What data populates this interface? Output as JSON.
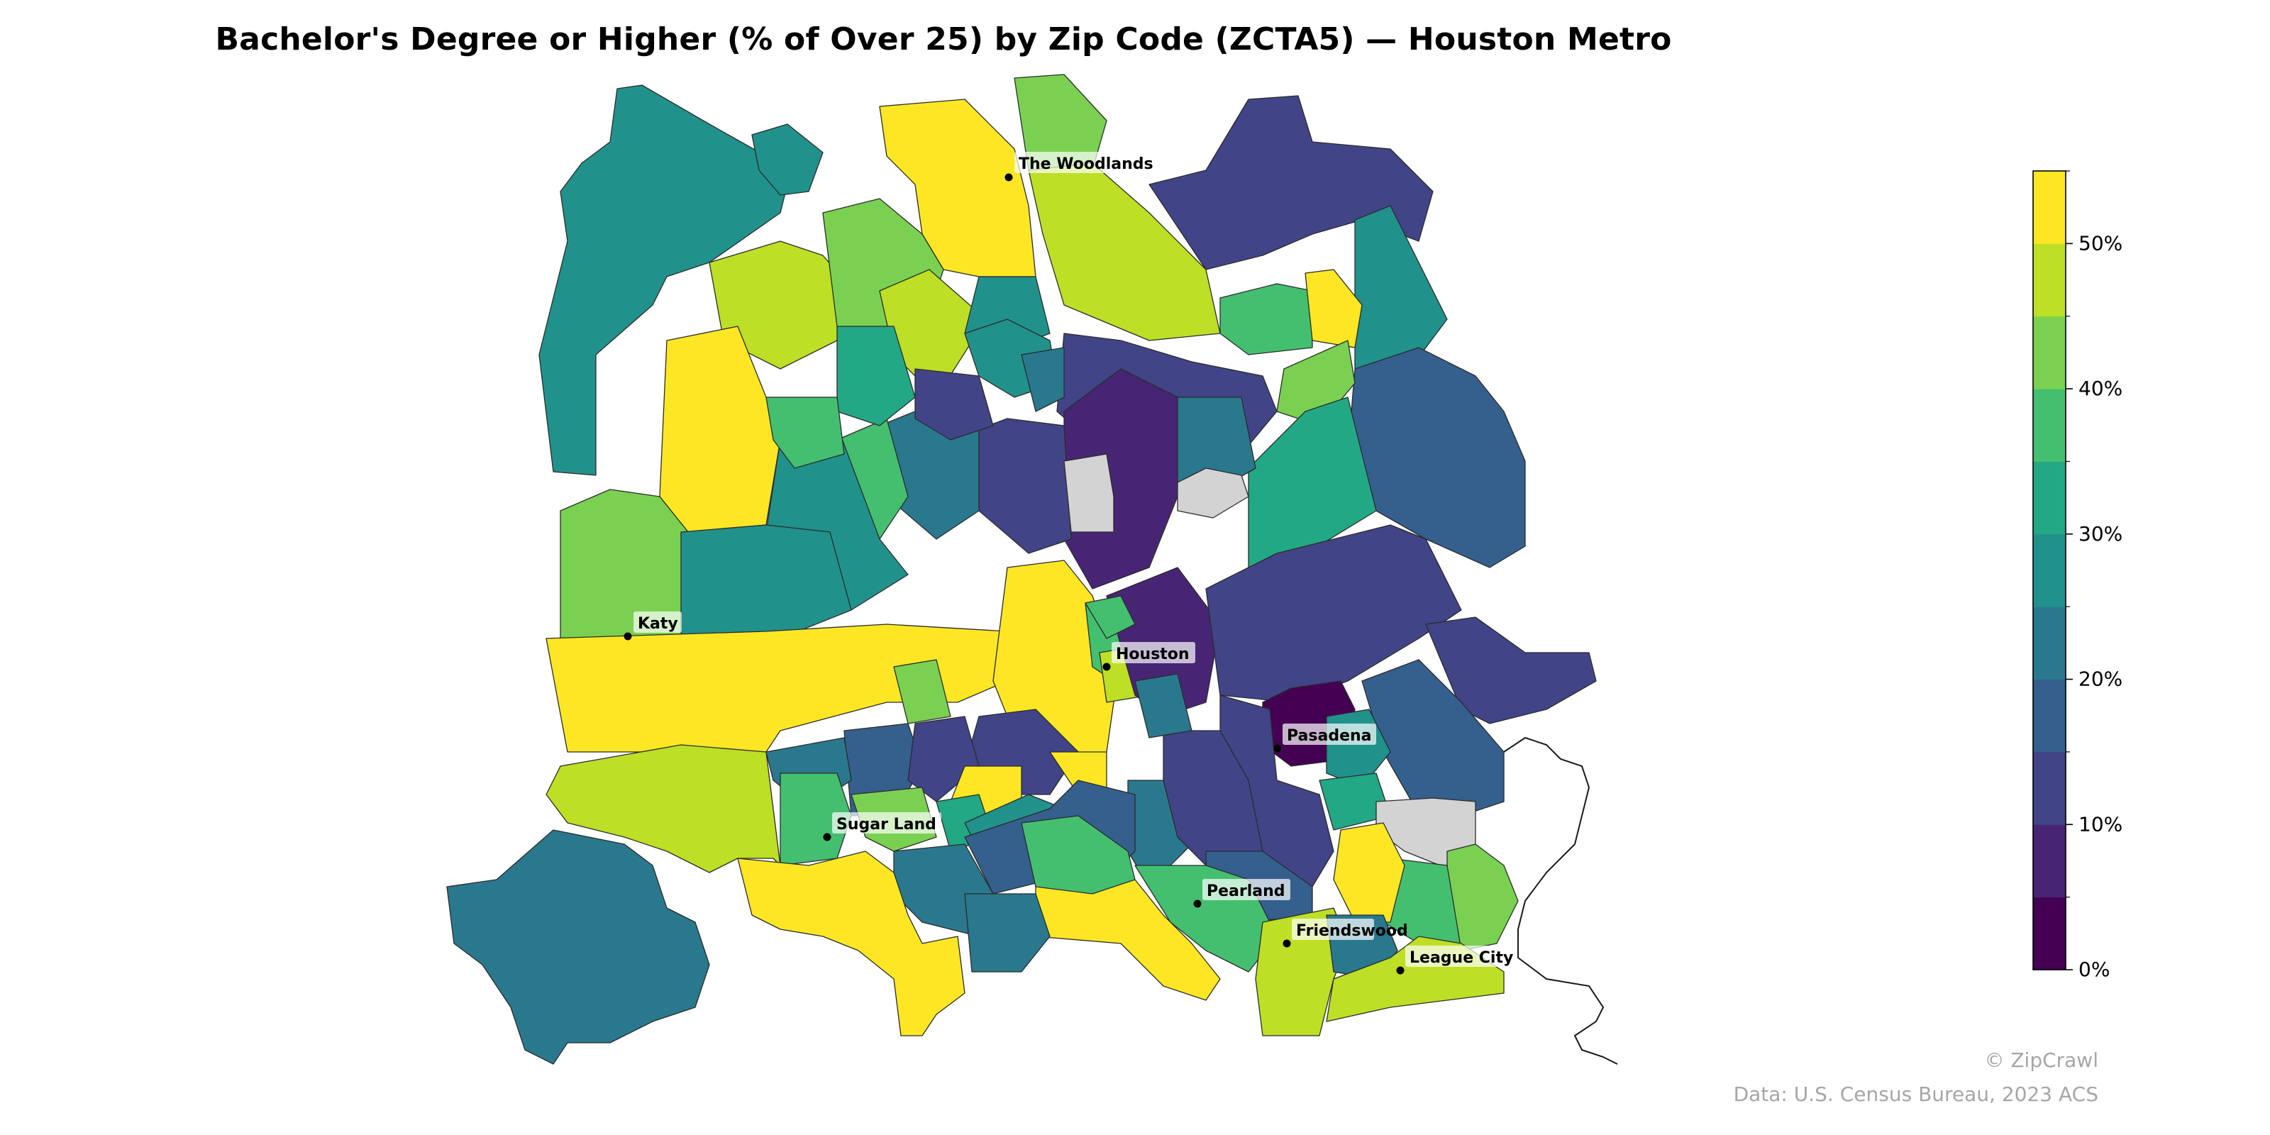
{
  "title": "Bachelor's Degree or Higher (% of Over 25) by Zip Code (ZCTA5) — Houston Metro",
  "cities": [
    {
      "name": "The Woodlands"
    },
    {
      "name": "Katy"
    },
    {
      "name": "Houston"
    },
    {
      "name": "Pasadena"
    },
    {
      "name": "Sugar Land"
    },
    {
      "name": "Pearland"
    },
    {
      "name": "Friendswood"
    },
    {
      "name": "League City"
    }
  ],
  "colorbar": {
    "min": 0,
    "max": 55,
    "tick_labels": [
      "0%",
      "10%",
      "20%",
      "30%",
      "40%",
      "50%"
    ],
    "bins": [
      "#440154",
      "#482475",
      "#414487",
      "#355f8d",
      "#2a788e",
      "#21918c",
      "#22a884",
      "#44bf70",
      "#7ad151",
      "#bddf26",
      "#fde725"
    ]
  },
  "no_data_color": "#d3d3d3",
  "credit": {
    "brand": "© ZipCrawl",
    "source": "Data: U.S. Census Bureau, 2023 ACS"
  }
}
